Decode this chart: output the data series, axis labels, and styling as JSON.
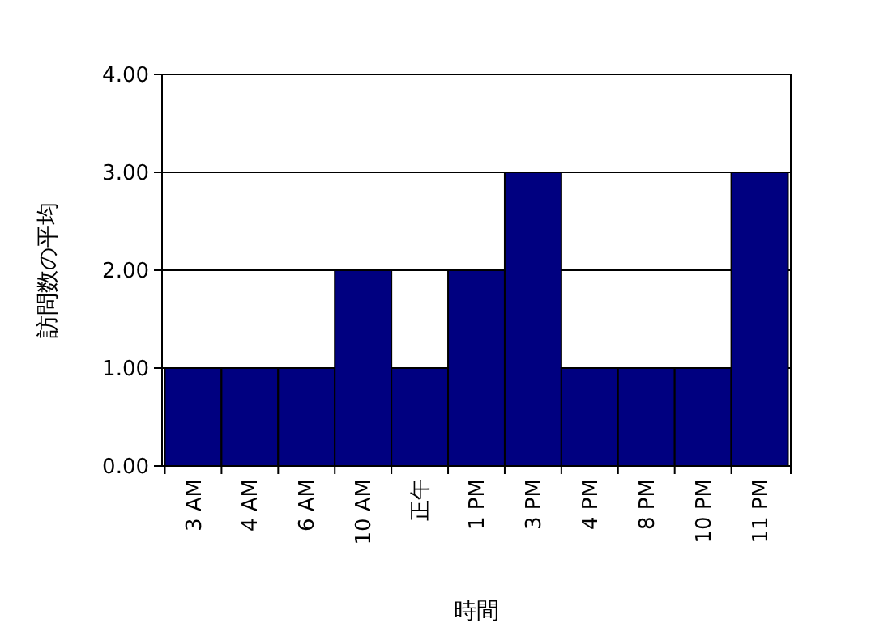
{
  "chart_data": {
    "type": "bar",
    "xlabel": "時間",
    "ylabel": "訪問数の平均",
    "categories": [
      "3 AM",
      "4 AM",
      "6 AM",
      "10 AM",
      "正午",
      "1 PM",
      "3 PM",
      "4 PM",
      "8 PM",
      "10 PM",
      "11 PM"
    ],
    "values": [
      1,
      1,
      1,
      2,
      1,
      2,
      3,
      1,
      1,
      1,
      3
    ],
    "color": "#000080",
    "ylim": [
      0,
      4
    ],
    "yticks": [
      {
        "value": 0,
        "label": "0.00"
      },
      {
        "value": 1,
        "label": "1.00"
      },
      {
        "value": 2,
        "label": "2.00"
      },
      {
        "value": 3,
        "label": "3.00"
      },
      {
        "value": 4,
        "label": "4.00"
      }
    ],
    "grid": "y"
  }
}
